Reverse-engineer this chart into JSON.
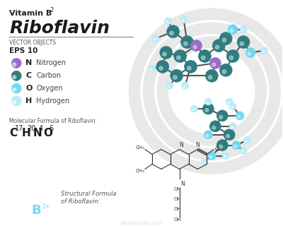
{
  "bg_color": "#ffffff",
  "title_vitamin": "Vitamin B",
  "title_vitamin_sub": "2",
  "title_main": "Riboflavin",
  "subtitle1": "VECTOR OBJECTS",
  "subtitle2": "EPS 10",
  "legend": [
    {
      "symbol": "N",
      "label": "Nitrogen",
      "color": "#9b6dc5"
    },
    {
      "symbol": "C",
      "label": "Carbon",
      "color": "#2e7d80"
    },
    {
      "symbol": "O",
      "label": "Oxygen",
      "color": "#72d8f0"
    },
    {
      "symbol": "H",
      "label": "Hydrogen",
      "color": "#b8ecf7"
    }
  ],
  "mol_formula_label": "Molecular Formula of Riboflavin:",
  "mol_formula": "C",
  "mol_formula_sub1": "17",
  "mol_formula_h": "H",
  "mol_formula_sub2": "20",
  "mol_formula_n": "N",
  "mol_formula_sub3": "4",
  "mol_formula_o": "O",
  "mol_formula_sub4": "6",
  "struct_label1": "Structural Formula",
  "struct_label2": "of Riboflavin:",
  "b2_circle_color": "#72d8f0",
  "b2_text": "B",
  "b2_sup": "2+",
  "carbon_color": "#2e7d80",
  "nitrogen_color": "#9b6dc5",
  "oxygen_color": "#72d8f0",
  "hydrogen_color": "#b8ecf7",
  "bond_color": "#555555",
  "arc_color": "#e8e8e8"
}
